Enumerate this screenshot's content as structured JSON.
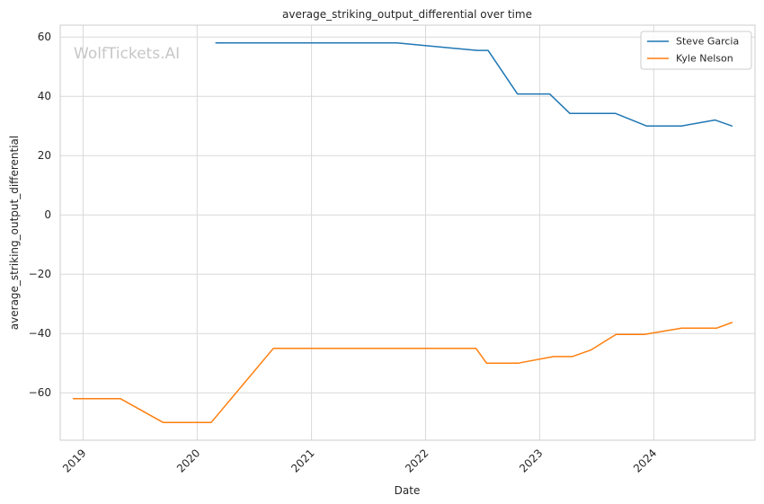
{
  "chart_data": {
    "type": "line",
    "title": "average_striking_output_differential over time",
    "xlabel": "Date",
    "ylabel": "average_striking_output_differential",
    "watermark": "WolfTickets.AI",
    "grid": true,
    "legend_position": "top-right",
    "x_ticks": [
      "2019",
      "2020",
      "2021",
      "2022",
      "2023",
      "2024"
    ],
    "y_ticks": [
      60,
      40,
      20,
      0,
      -20,
      -40,
      -60
    ],
    "y_tick_labels": [
      "60",
      "40",
      "20",
      "0",
      "−20",
      "−40",
      "−60"
    ],
    "ylim": [
      -76,
      64
    ],
    "xlim": [
      "2018-10-20",
      "2024-11-20"
    ],
    "series": [
      {
        "name": "Steve Garcia",
        "color": "#1f77b4",
        "points": [
          [
            "2020-03-01",
            58
          ],
          [
            "2021-10-01",
            58
          ],
          [
            "2022-06-15",
            55.5
          ],
          [
            "2022-07-20",
            55.5
          ],
          [
            "2022-10-22",
            40.8
          ],
          [
            "2023-02-02",
            40.8
          ],
          [
            "2023-04-08",
            34.2
          ],
          [
            "2023-09-01",
            34.2
          ],
          [
            "2023-12-09",
            30
          ],
          [
            "2024-03-30",
            30
          ],
          [
            "2024-07-15",
            32
          ],
          [
            "2024-09-07",
            30
          ]
        ]
      },
      {
        "name": "Kyle Nelson",
        "color": "#ff7f0e",
        "points": [
          [
            "2018-12-01",
            -62
          ],
          [
            "2019-05-01",
            -62
          ],
          [
            "2019-09-14",
            -70
          ],
          [
            "2020-02-15",
            -70
          ],
          [
            "2020-09-01",
            -45
          ],
          [
            "2022-06-11",
            -45
          ],
          [
            "2022-07-15",
            -50
          ],
          [
            "2022-10-25",
            -50
          ],
          [
            "2023-02-14",
            -47.8
          ],
          [
            "2023-04-15",
            -47.8
          ],
          [
            "2023-06-15",
            -45.5
          ],
          [
            "2023-09-02",
            -40.3
          ],
          [
            "2023-12-02",
            -40.3
          ],
          [
            "2024-03-30",
            -38.2
          ],
          [
            "2024-07-20",
            -38.2
          ],
          [
            "2024-09-07",
            -36.3
          ]
        ]
      }
    ]
  }
}
